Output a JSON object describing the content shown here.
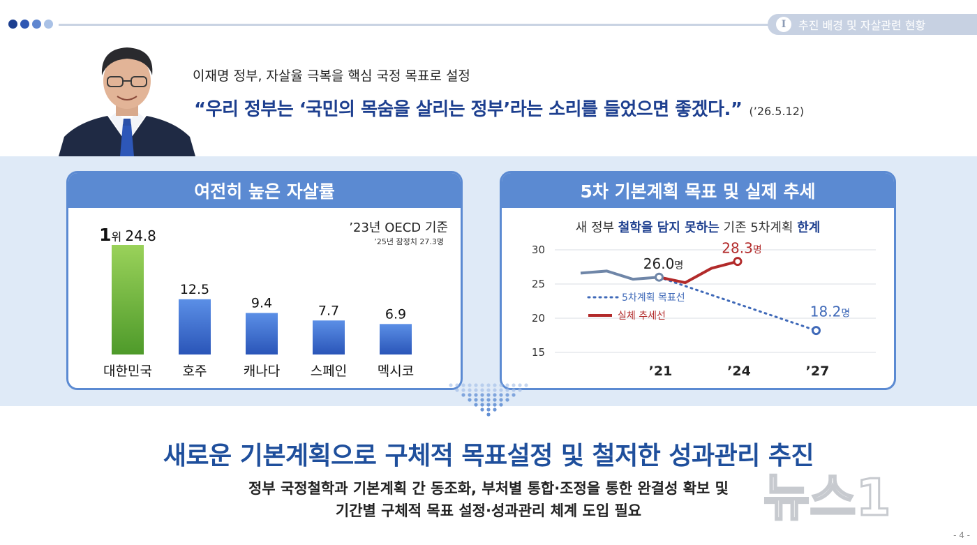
{
  "header": {
    "section_number": "I",
    "section_title": "추진 배경 및 자살관련 현황",
    "dot_colors": [
      "#1d3f8f",
      "#2e57b3",
      "#5f86cf",
      "#a9c1e6"
    ]
  },
  "intro": {
    "subtitle": "이재명 정부, 자살율 극복을 핵심 국정 목표로 설정",
    "quote": "“우리 정부는 ‘국민의 목숨을 살리는 정부’라는 소리를 들었으면 좋겠다.”",
    "quote_date": "(’26.5.12)"
  },
  "chart_data": [
    {
      "type": "bar",
      "title": "여전히 높은 자살률",
      "basis": "’23년 OECD 기준",
      "basis_note": "’25년 잠정치 27.3명",
      "categories": [
        "대한민국",
        "호주",
        "캐나다",
        "스페인",
        "멕시코"
      ],
      "values": [
        24.8,
        12.5,
        9.4,
        7.7,
        6.9
      ],
      "value_labels": [
        "24.8",
        "12.5",
        "9.4",
        "7.7",
        "6.9"
      ],
      "rank_number": "1",
      "rank_suffix": "위",
      "highlight_color": "#7cc043",
      "bar_color": "#3b6fd0"
    },
    {
      "type": "line",
      "title": "5차 기본계획 목표 및 실제 추세",
      "subtitle_parts": [
        "새 정부 ",
        "철학을 담지 못하는",
        " 기존 5차계획 ",
        "한계"
      ],
      "yticks": [
        "30",
        "25",
        "20",
        "15"
      ],
      "ylim": [
        15,
        30
      ],
      "xticks": [
        "’21",
        "’24",
        "’27"
      ],
      "series": [
        {
          "name": "",
          "color": "#6f86a8",
          "x": [
            2018,
            2019,
            2020,
            2021
          ],
          "y": [
            26.6,
            26.9,
            25.7,
            26.0
          ]
        },
        {
          "name": "5차계획 목표선",
          "color": "#3f69b8",
          "dashed": true,
          "x": [
            2021,
            2027
          ],
          "y": [
            26.0,
            18.2
          ]
        },
        {
          "name": "실체 추세선",
          "color": "#b22a2a",
          "x": [
            2021,
            2022,
            2023,
            2024
          ],
          "y": [
            26.0,
            25.2,
            27.3,
            28.3
          ]
        }
      ],
      "annotations": {
        "a2021": {
          "value": "26.0",
          "unit": "명"
        },
        "a2024": {
          "value": "28.3",
          "unit": "명"
        },
        "a2027": {
          "value": "18.2",
          "unit": "명"
        }
      }
    }
  ],
  "conclusion": {
    "headline": "새로운 기본계획으로 구체적 목표설정 및 철저한 성과관리 추진",
    "line1": "정부 국정철학과 기본계획 간 동조화, 부처별 통합·조정을 통한 완결성 확보 및",
    "line2": "기간별 구체적 목표 설정·성과관리 체계 도입 필요"
  },
  "watermark_text": "뉴스1",
  "page_number": "- 4 -"
}
